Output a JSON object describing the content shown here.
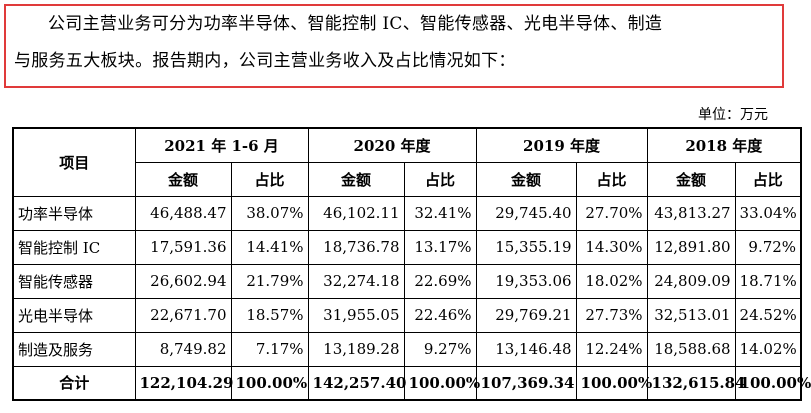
{
  "intro": {
    "line1": "公司主营业务可分为功率半导体、智能控制 IC、智能传感器、光电半导体、制造",
    "line2": "与服务五大板块。报告期内，公司主营业务收入及占比情况如下："
  },
  "unit_label": "单位：万元",
  "table": {
    "item_header": "项目",
    "periods": [
      "2021 年 1-6 月",
      "2020 年度",
      "2019 年度",
      "2018 年度"
    ],
    "sub_headers": [
      "金额",
      "占比"
    ],
    "rows": [
      {
        "label": "功率半导体",
        "values": [
          "46,488.47",
          "38.07%",
          "46,102.11",
          "32.41%",
          "29,745.40",
          "27.70%",
          "43,813.27",
          "33.04%"
        ]
      },
      {
        "label": "智能控制 IC",
        "values": [
          "17,591.36",
          "14.41%",
          "18,736.78",
          "13.17%",
          "15,355.19",
          "14.30%",
          "12,891.80",
          "9.72%"
        ]
      },
      {
        "label": "智能传感器",
        "values": [
          "26,602.94",
          "21.79%",
          "32,274.18",
          "22.69%",
          "19,353.06",
          "18.02%",
          "24,809.09",
          "18.71%"
        ]
      },
      {
        "label": "光电半导体",
        "values": [
          "22,671.70",
          "18.57%",
          "31,955.05",
          "22.46%",
          "29,769.21",
          "27.73%",
          "32,513.01",
          "24.52%"
        ]
      },
      {
        "label": "制造及服务",
        "values": [
          "8,749.82",
          "7.17%",
          "13,189.28",
          "9.27%",
          "13,146.48",
          "12.24%",
          "18,588.68",
          "14.02%"
        ]
      }
    ],
    "total": {
      "label": "合计",
      "values": [
        "122,104.29",
        "100.00%",
        "142,257.40",
        "100.00%",
        "107,369.34",
        "100.00%",
        "132,615.84",
        "100.00%"
      ]
    }
  }
}
